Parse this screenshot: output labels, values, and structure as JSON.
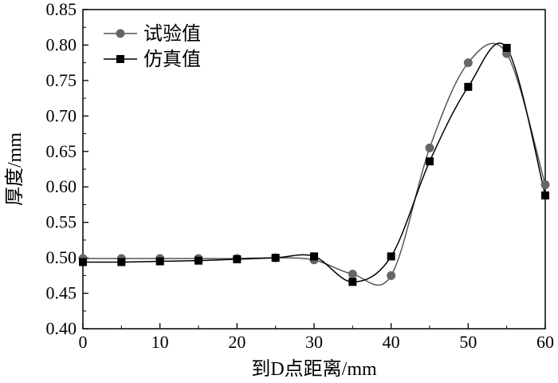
{
  "chart_data": {
    "type": "line",
    "xlabel": "到D点距离/mm",
    "ylabel": "厚度/mm",
    "xlim": [
      0,
      60
    ],
    "ylim": [
      0.4,
      0.85
    ],
    "x_ticks": [
      "0",
      "10",
      "20",
      "30",
      "40",
      "50",
      "60"
    ],
    "y_ticks": [
      "0.40",
      "0.45",
      "0.50",
      "0.55",
      "0.60",
      "0.65",
      "0.70",
      "0.75",
      "0.80",
      "0.85"
    ],
    "grid": false,
    "legend_position": "top-left",
    "series": [
      {
        "name": "试验值",
        "marker": "circle",
        "color": "#666666",
        "x": [
          0,
          5,
          10,
          15,
          20,
          25,
          30,
          35,
          40,
          45,
          50,
          55,
          60
        ],
        "y": [
          0.499,
          0.499,
          0.499,
          0.499,
          0.499,
          0.5,
          0.497,
          0.477,
          0.475,
          0.655,
          0.775,
          0.788,
          0.603
        ]
      },
      {
        "name": "仿真值",
        "marker": "square",
        "color": "#000000",
        "x": [
          0,
          5,
          10,
          15,
          20,
          25,
          30,
          35,
          40,
          45,
          50,
          55,
          60
        ],
        "y": [
          0.494,
          0.494,
          0.495,
          0.496,
          0.498,
          0.5,
          0.502,
          0.466,
          0.502,
          0.636,
          0.741,
          0.796,
          0.588
        ]
      }
    ]
  }
}
